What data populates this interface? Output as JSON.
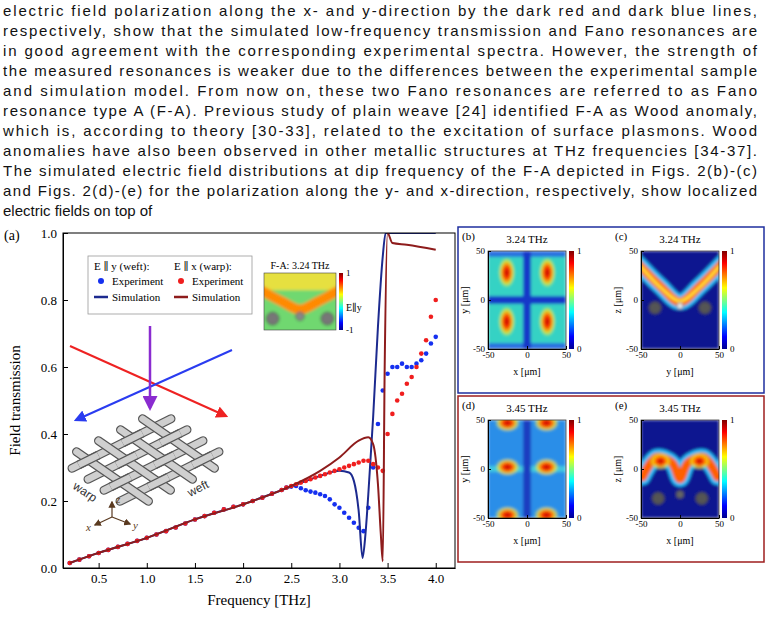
{
  "body_text": [
    "electric field polarization along the x- and y-direction by the dark red and dark blue lines,",
    "respectively, show that the simulated low-frequency transmission and Fano resonances are",
    "in good agreement with the corresponding experimental spectra. However, the strength of",
    "the measured resonances is weaker due to the differences between the experimental sample",
    "and simulation model. From now on, these two Fano resonances are referred to as Fano",
    "resonance type A (F-A). Previous study of plain weave [24] identified F-A as Wood anomaly,",
    "which is, according to theory [30-33], related to the excitation of surface plasmons. Wood",
    "anomalies have also been observed in other metallic structures at THz frequencies [34-37].",
    "The simulated electric field distributions at dip frequency of the F-A depicted in Figs. 2(b)-(c)",
    "and Figs. 2(d)-(e) for the polarization along the y- and x-direction, respectively, show localized",
    "electric fields on top of"
  ],
  "chart_data": {
    "type": "line",
    "panel_label": "(a)",
    "xlabel": "Frequency [THz]",
    "ylabel": "Field transmission",
    "xlim": [
      0.13,
      4.2
    ],
    "ylim": [
      0,
      1.0
    ],
    "xticks": [
      0.5,
      {
        "value": 1,
        "label": "1.0"
      },
      1.5,
      {
        "value": 2,
        "label": "2.0"
      },
      2.5,
      {
        "value": 3,
        "label": "3.0"
      },
      3.5,
      {
        "value": 4,
        "label": "4.0"
      }
    ],
    "yticks": [
      {
        "value": 0,
        "label": "0.0"
      },
      0.2,
      0.4,
      0.6,
      0.8,
      {
        "value": 1,
        "label": "1.0"
      }
    ],
    "legend": "upper left",
    "legend_titles": [
      "E ∥ y (weft):",
      "E ∥ x (warp):"
    ],
    "series": [
      {
        "name": "Experiment",
        "type": "scatter",
        "marker": "circle",
        "color": "#1530f0",
        "x": [
          0.2,
          0.3,
          0.4,
          0.5,
          0.6,
          0.7,
          0.8,
          0.9,
          1.0,
          1.1,
          1.2,
          1.3,
          1.4,
          1.5,
          1.6,
          1.7,
          1.8,
          1.9,
          2.0,
          2.1,
          2.2,
          2.3,
          2.4,
          2.45,
          2.5,
          2.55,
          2.6,
          2.65,
          2.7,
          2.75,
          2.8,
          2.85,
          2.9,
          2.95,
          3.0,
          3.05,
          3.1,
          3.15,
          3.2,
          3.25,
          3.3,
          3.35,
          3.4,
          3.45,
          3.5,
          3.55,
          3.6,
          3.65,
          3.7,
          3.75,
          3.8,
          3.85,
          3.9,
          3.95,
          4.0
        ],
        "values": [
          0.015,
          0.025,
          0.035,
          0.045,
          0.054,
          0.063,
          0.072,
          0.081,
          0.09,
          0.1,
          0.11,
          0.121,
          0.133,
          0.145,
          0.155,
          0.165,
          0.175,
          0.183,
          0.19,
          0.2,
          0.21,
          0.222,
          0.233,
          0.24,
          0.243,
          0.245,
          0.238,
          0.232,
          0.228,
          0.225,
          0.22,
          0.215,
          0.205,
          0.19,
          0.18,
          0.165,
          0.15,
          0.135,
          0.12,
          0.11,
          0.18,
          0.3,
          0.43,
          0.53,
          0.58,
          0.6,
          0.6,
          0.61,
          0.6,
          0.6,
          0.61,
          0.62,
          0.64,
          0.67,
          0.69
        ]
      },
      {
        "name": "Simulation",
        "type": "line",
        "line_style": "solid",
        "color": "#1c2a8f",
        "x": [
          0.2,
          0.5,
          1.0,
          1.5,
          2.0,
          2.5,
          2.8,
          3.0,
          3.1,
          3.15,
          3.2,
          3.24,
          3.27,
          3.3,
          3.35,
          3.4,
          3.45,
          3.48,
          3.55,
          4.0
        ],
        "values": [
          0.015,
          0.045,
          0.09,
          0.145,
          0.19,
          0.243,
          0.275,
          0.29,
          0.285,
          0.26,
          0.17,
          0.03,
          0.1,
          0.22,
          0.45,
          0.72,
          0.93,
          1.0,
          1.0,
          1.0
        ]
      },
      {
        "name": "Experiment",
        "type": "scatter",
        "marker": "circle",
        "color": "#f01e1e",
        "x": [
          0.2,
          0.3,
          0.4,
          0.5,
          0.6,
          0.7,
          0.8,
          0.9,
          1.0,
          1.1,
          1.2,
          1.3,
          1.4,
          1.5,
          1.6,
          1.7,
          1.8,
          1.9,
          2.0,
          2.1,
          2.2,
          2.3,
          2.4,
          2.45,
          2.5,
          2.55,
          2.6,
          2.65,
          2.7,
          2.75,
          2.8,
          2.85,
          2.9,
          2.95,
          3.0,
          3.05,
          3.1,
          3.15,
          3.2,
          3.25,
          3.3,
          3.35,
          3.4,
          3.45,
          3.5,
          3.55,
          3.6,
          3.65,
          3.7,
          3.75,
          3.8,
          3.85,
          3.9,
          3.95,
          4.0
        ],
        "values": [
          0.015,
          0.025,
          0.035,
          0.045,
          0.054,
          0.063,
          0.072,
          0.081,
          0.09,
          0.1,
          0.11,
          0.121,
          0.133,
          0.145,
          0.155,
          0.165,
          0.175,
          0.183,
          0.19,
          0.2,
          0.21,
          0.222,
          0.233,
          0.24,
          0.245,
          0.25,
          0.255,
          0.26,
          0.265,
          0.27,
          0.275,
          0.28,
          0.285,
          0.29,
          0.295,
          0.3,
          0.305,
          0.31,
          0.315,
          0.32,
          0.32,
          0.31,
          0.3,
          0.29,
          0.4,
          0.46,
          0.5,
          0.52,
          0.55,
          0.57,
          0.6,
          0.64,
          0.68,
          0.75,
          0.8
        ]
      },
      {
        "name": "Simulation",
        "type": "line",
        "line_style": "solid",
        "color": "#8e1c1c",
        "x": [
          0.2,
          0.5,
          1.0,
          1.5,
          2.0,
          2.5,
          2.8,
          3.0,
          3.2,
          3.3,
          3.35,
          3.4,
          3.43,
          3.45,
          3.47,
          3.5,
          3.55,
          3.7,
          4.0
        ],
        "values": [
          0.015,
          0.045,
          0.09,
          0.145,
          0.19,
          0.245,
          0.29,
          0.33,
          0.38,
          0.39,
          0.37,
          0.25,
          0.1,
          0.02,
          0.6,
          1.0,
          0.97,
          0.965,
          0.95
        ]
      }
    ],
    "inset": {
      "title": "F-A: 3.24 THz",
      "colorbar_range": [
        -1,
        1
      ],
      "colorbar_ticks": [
        -1,
        1
      ],
      "field_label": "E∥y"
    },
    "weave_labels": [
      "warp",
      "weft",
      "x",
      "y",
      "z"
    ]
  },
  "field_panels": [
    {
      "label": "(b)",
      "title": "3.24 THz",
      "xlabel": "x [μm]",
      "ylabel": "y [μm]",
      "xlim": [
        -50,
        50
      ],
      "ylim": [
        -50,
        50
      ],
      "xticks": [
        -50,
        0,
        50
      ],
      "yticks": [
        -50,
        0,
        50
      ],
      "colorbar_range": [
        0,
        1
      ],
      "colorbar_ticks": [
        0,
        1
      ],
      "color": "#1f2f9f"
    },
    {
      "label": "(c)",
      "title": "3.24 THz",
      "xlabel": "y [μm]",
      "ylabel": "z [μm]",
      "xlim": [
        -50,
        50
      ],
      "ylim": [
        -50,
        50
      ],
      "xticks": [
        -50,
        0,
        50
      ],
      "yticks": [
        -50,
        0,
        50
      ],
      "colorbar_range": [
        0,
        1
      ],
      "colorbar_ticks": [
        0,
        1
      ],
      "color": "#1f2f9f"
    },
    {
      "label": "(d)",
      "title": "3.45 THz",
      "xlabel": "x [μm]",
      "ylabel": "y [μm]",
      "xlim": [
        -50,
        50
      ],
      "ylim": [
        -50,
        50
      ],
      "xticks": [
        -50,
        0,
        50
      ],
      "yticks": [
        -50,
        0,
        50
      ],
      "colorbar_range": [
        0,
        1
      ],
      "colorbar_ticks": [
        0,
        1
      ],
      "color": "#9f1f1f"
    },
    {
      "label": "(e)",
      "title": "3.45 THz",
      "xlabel": "x [μm]",
      "ylabel": "z [μm]",
      "xlim": [
        -50,
        50
      ],
      "ylim": [
        -50,
        50
      ],
      "xticks": [
        -50,
        0,
        50
      ],
      "yticks": [
        -50,
        0,
        50
      ],
      "colorbar_range": [
        0,
        1
      ],
      "colorbar_ticks": [
        0,
        1
      ],
      "color": "#9f1f1f"
    }
  ]
}
